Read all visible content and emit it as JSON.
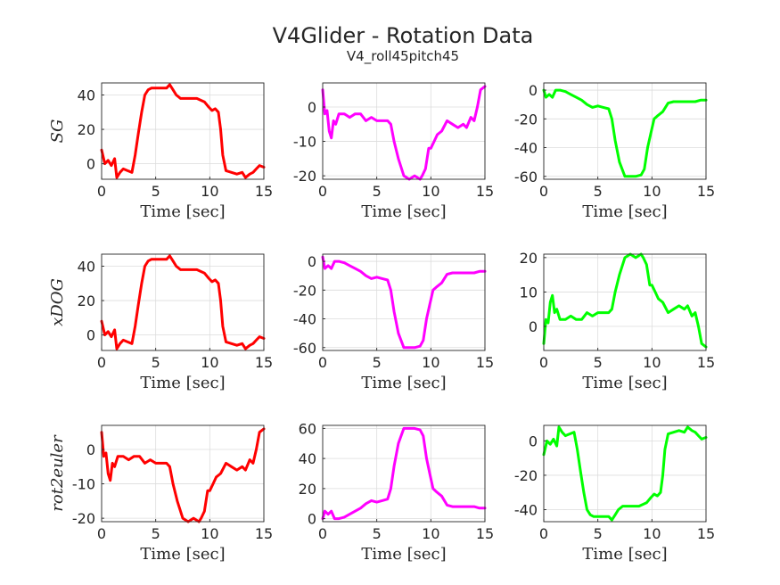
{
  "figure": {
    "title": "V4Glider - Rotation Data",
    "subtitle": "V4_roll45pitch45"
  },
  "chart_data": [
    {
      "type": "line",
      "row": 0,
      "col": 0,
      "ylabel": "SG",
      "xlabel": "Time [sec]",
      "xlim": [
        0,
        15
      ],
      "ylim": [
        -9,
        47
      ],
      "xticks": [
        0,
        5,
        10,
        15
      ],
      "yticks": [
        0,
        20,
        40
      ],
      "grid": true,
      "series": [
        {
          "color": "#ff0000",
          "x": [
            0,
            0.3,
            0.6,
            0.9,
            1.2,
            1.4,
            1.7,
            2.0,
            2.4,
            2.8,
            3.1,
            3.4,
            3.7,
            4.0,
            4.3,
            4.6,
            5.0,
            5.5,
            6.0,
            6.3,
            6.6,
            6.9,
            7.3,
            8.0,
            8.8,
            9.5,
            9.9,
            10.2,
            10.5,
            10.8,
            11.0,
            11.2,
            11.5,
            12.0,
            12.5,
            13.0,
            13.3,
            13.7,
            14.0,
            14.3,
            14.6,
            15.0
          ],
          "y": [
            8,
            0,
            2,
            -1,
            3,
            -8,
            -5,
            -3,
            -4,
            -5,
            5,
            18,
            30,
            40,
            43,
            44,
            44,
            44,
            44,
            46,
            43,
            40,
            38,
            38,
            38,
            36,
            33,
            31,
            32,
            30,
            20,
            5,
            -4,
            -5,
            -6,
            -5,
            -8,
            -6,
            -5,
            -3,
            -1,
            -2
          ]
        }
      ]
    },
    {
      "type": "line",
      "row": 0,
      "col": 1,
      "xlabel": "Time [sec]",
      "xlim": [
        0,
        15
      ],
      "ylim": [
        -21,
        7
      ],
      "xticks": [
        0,
        5,
        10,
        15
      ],
      "yticks": [
        -20,
        -10,
        0
      ],
      "grid": true,
      "series": [
        {
          "color": "#ff00ff",
          "x": [
            0,
            0.2,
            0.4,
            0.6,
            0.8,
            1.0,
            1.2,
            1.5,
            2.0,
            2.5,
            3.0,
            3.5,
            4.0,
            4.5,
            5.0,
            5.5,
            6.0,
            6.3,
            6.6,
            7.0,
            7.5,
            8.0,
            8.5,
            9.0,
            9.2,
            9.5,
            9.8,
            10.0,
            10.3,
            10.6,
            11.0,
            11.5,
            12.0,
            12.5,
            13.0,
            13.3,
            13.7,
            14.0,
            14.3,
            14.6,
            15.0
          ],
          "y": [
            5,
            -2,
            -1,
            -7,
            -9,
            -4,
            -5,
            -2,
            -2,
            -3,
            -2,
            -2,
            -4,
            -3,
            -4,
            -4,
            -4,
            -5,
            -10,
            -15,
            -20,
            -21,
            -20,
            -21,
            -20,
            -18,
            -12,
            -12,
            -10,
            -8,
            -7,
            -4,
            -5,
            -6,
            -5,
            -6,
            -3,
            -4,
            0,
            5,
            6
          ]
        }
      ]
    },
    {
      "type": "line",
      "row": 0,
      "col": 2,
      "xlabel": "Time [sec]",
      "xlim": [
        0,
        15
      ],
      "ylim": [
        -62,
        5
      ],
      "xticks": [
        0,
        5,
        10,
        15
      ],
      "yticks": [
        -60,
        -40,
        -20,
        0
      ],
      "grid": true,
      "series": [
        {
          "color": "#00ff00",
          "x": [
            0,
            0.2,
            0.5,
            0.8,
            1.1,
            1.5,
            2.0,
            2.5,
            3.0,
            3.5,
            4.0,
            4.5,
            5.0,
            5.5,
            6.0,
            6.3,
            6.6,
            7.0,
            7.5,
            8.0,
            8.5,
            9.0,
            9.3,
            9.6,
            9.9,
            10.2,
            10.5,
            11.0,
            11.5,
            12.0,
            12.5,
            13.0,
            13.5,
            14.0,
            14.5,
            15.0
          ],
          "y": [
            0,
            -5,
            -3,
            -5,
            0,
            0,
            -1,
            -3,
            -5,
            -7,
            -10,
            -12,
            -11,
            -12,
            -13,
            -20,
            -35,
            -50,
            -60,
            -60,
            -60,
            -59,
            -55,
            -40,
            -30,
            -20,
            -18,
            -15,
            -9,
            -8,
            -8,
            -8,
            -8,
            -8,
            -7,
            -7
          ]
        }
      ]
    },
    {
      "type": "line",
      "row": 1,
      "col": 0,
      "ylabel": "xDOG",
      "xlabel": "Time [sec]",
      "xlim": [
        0,
        15
      ],
      "ylim": [
        -9,
        47
      ],
      "xticks": [
        0,
        5,
        10,
        15
      ],
      "yticks": [
        0,
        20,
        40
      ],
      "grid": true,
      "series": [
        {
          "color": "#ff0000",
          "x": [
            0,
            0.3,
            0.6,
            0.9,
            1.2,
            1.4,
            1.7,
            2.0,
            2.4,
            2.8,
            3.1,
            3.4,
            3.7,
            4.0,
            4.3,
            4.6,
            5.0,
            5.5,
            6.0,
            6.3,
            6.6,
            6.9,
            7.3,
            8.0,
            8.8,
            9.5,
            9.9,
            10.2,
            10.5,
            10.8,
            11.0,
            11.2,
            11.5,
            12.0,
            12.5,
            13.0,
            13.3,
            13.7,
            14.0,
            14.3,
            14.6,
            15.0
          ],
          "y": [
            8,
            0,
            2,
            -1,
            3,
            -8,
            -5,
            -3,
            -4,
            -5,
            5,
            18,
            30,
            40,
            43,
            44,
            44,
            44,
            44,
            46,
            43,
            40,
            38,
            38,
            38,
            36,
            33,
            31,
            32,
            30,
            20,
            5,
            -4,
            -5,
            -6,
            -5,
            -8,
            -6,
            -5,
            -3,
            -1,
            -2
          ]
        }
      ]
    },
    {
      "type": "line",
      "row": 1,
      "col": 1,
      "xlabel": "Time [sec]",
      "xlim": [
        0,
        15
      ],
      "ylim": [
        -62,
        5
      ],
      "xticks": [
        0,
        5,
        10,
        15
      ],
      "yticks": [
        -60,
        -40,
        -20,
        0
      ],
      "grid": true,
      "series": [
        {
          "color": "#ff00ff",
          "x": [
            0,
            0.2,
            0.5,
            0.8,
            1.1,
            1.5,
            2.0,
            2.5,
            3.0,
            3.5,
            4.0,
            4.5,
            5.0,
            5.5,
            6.0,
            6.3,
            6.6,
            7.0,
            7.5,
            8.0,
            8.5,
            9.0,
            9.3,
            9.6,
            9.9,
            10.2,
            10.5,
            11.0,
            11.5,
            12.0,
            12.5,
            13.0,
            13.5,
            14.0,
            14.5,
            15.0
          ],
          "y": [
            3,
            -5,
            -3,
            -5,
            0,
            0,
            -1,
            -3,
            -5,
            -7,
            -10,
            -12,
            -11,
            -12,
            -13,
            -20,
            -35,
            -50,
            -60,
            -60,
            -60,
            -59,
            -55,
            -40,
            -30,
            -20,
            -18,
            -15,
            -9,
            -8,
            -8,
            -8,
            -8,
            -8,
            -7,
            -7
          ]
        }
      ]
    },
    {
      "type": "line",
      "row": 1,
      "col": 2,
      "xlabel": "Time [sec]",
      "xlim": [
        0,
        15
      ],
      "ylim": [
        -7,
        21
      ],
      "xticks": [
        0,
        5,
        10,
        15
      ],
      "yticks": [
        0,
        10,
        20
      ],
      "grid": true,
      "series": [
        {
          "color": "#00ff00",
          "x": [
            0,
            0.2,
            0.4,
            0.6,
            0.8,
            1.0,
            1.2,
            1.5,
            2.0,
            2.5,
            3.0,
            3.5,
            4.0,
            4.5,
            5.0,
            5.5,
            6.0,
            6.3,
            6.6,
            7.0,
            7.5,
            8.0,
            8.5,
            9.0,
            9.2,
            9.5,
            9.8,
            10.0,
            10.3,
            10.6,
            11.0,
            11.5,
            12.0,
            12.5,
            13.0,
            13.3,
            13.7,
            14.0,
            14.3,
            14.6,
            15.0
          ],
          "y": [
            -5,
            2,
            1,
            7,
            9,
            4,
            5,
            2,
            2,
            3,
            2,
            2,
            4,
            3,
            4,
            4,
            4,
            5,
            10,
            15,
            20,
            21,
            20,
            21,
            20,
            18,
            12,
            12,
            10,
            8,
            7,
            4,
            5,
            6,
            5,
            6,
            3,
            4,
            0,
            -5,
            -6
          ]
        }
      ]
    },
    {
      "type": "line",
      "row": 2,
      "col": 0,
      "ylabel": "rot2euler",
      "xlabel": "Time [sec]",
      "xlim": [
        0,
        15
      ],
      "ylim": [
        -21,
        7
      ],
      "xticks": [
        0,
        5,
        10,
        15
      ],
      "yticks": [
        -20,
        -10,
        0
      ],
      "grid": true,
      "series": [
        {
          "color": "#ff0000",
          "x": [
            0,
            0.2,
            0.4,
            0.6,
            0.8,
            1.0,
            1.2,
            1.5,
            2.0,
            2.5,
            3.0,
            3.5,
            4.0,
            4.5,
            5.0,
            5.5,
            6.0,
            6.3,
            6.6,
            7.0,
            7.5,
            8.0,
            8.5,
            9.0,
            9.2,
            9.5,
            9.8,
            10.0,
            10.3,
            10.6,
            11.0,
            11.5,
            12.0,
            12.5,
            13.0,
            13.3,
            13.7,
            14.0,
            14.3,
            14.6,
            15.0
          ],
          "y": [
            5,
            -2,
            -1,
            -7,
            -9,
            -4,
            -5,
            -2,
            -2,
            -3,
            -2,
            -2,
            -4,
            -3,
            -4,
            -4,
            -4,
            -5,
            -10,
            -15,
            -20,
            -21,
            -20,
            -21,
            -20,
            -18,
            -12,
            -12,
            -10,
            -8,
            -7,
            -4,
            -5,
            -6,
            -5,
            -6,
            -3,
            -4,
            0,
            5,
            6
          ]
        }
      ]
    },
    {
      "type": "line",
      "row": 2,
      "col": 1,
      "xlabel": "Time [sec]",
      "xlim": [
        0,
        15
      ],
      "ylim": [
        -2,
        62
      ],
      "xticks": [
        0,
        5,
        10,
        15
      ],
      "yticks": [
        0,
        20,
        40,
        60
      ],
      "grid": true,
      "series": [
        {
          "color": "#ff00ff",
          "x": [
            0,
            0.2,
            0.5,
            0.8,
            1.1,
            1.5,
            2.0,
            2.5,
            3.0,
            3.5,
            4.0,
            4.5,
            5.0,
            5.5,
            6.0,
            6.3,
            6.6,
            7.0,
            7.5,
            8.0,
            8.5,
            9.0,
            9.3,
            9.6,
            9.9,
            10.2,
            10.5,
            11.0,
            11.5,
            12.0,
            12.5,
            13.0,
            13.5,
            14.0,
            14.5,
            15.0
          ],
          "y": [
            0,
            5,
            3,
            5,
            0,
            0,
            1,
            3,
            5,
            7,
            10,
            12,
            11,
            12,
            13,
            20,
            35,
            50,
            60,
            60,
            60,
            59,
            55,
            40,
            30,
            20,
            18,
            15,
            9,
            8,
            8,
            8,
            8,
            8,
            7,
            7
          ]
        }
      ]
    },
    {
      "type": "line",
      "row": 2,
      "col": 2,
      "xlabel": "Time [sec]",
      "xlim": [
        0,
        15
      ],
      "ylim": [
        -47,
        9
      ],
      "xticks": [
        0,
        5,
        10,
        15
      ],
      "yticks": [
        -40,
        -20,
        0
      ],
      "grid": true,
      "series": [
        {
          "color": "#00ff00",
          "x": [
            0,
            0.3,
            0.6,
            0.9,
            1.2,
            1.4,
            1.7,
            2.0,
            2.4,
            2.8,
            3.1,
            3.4,
            3.7,
            4.0,
            4.3,
            4.6,
            5.0,
            5.5,
            6.0,
            6.3,
            6.6,
            6.9,
            7.3,
            8.0,
            8.8,
            9.5,
            9.9,
            10.2,
            10.5,
            10.8,
            11.0,
            11.2,
            11.5,
            12.0,
            12.5,
            13.0,
            13.3,
            13.7,
            14.0,
            14.3,
            14.6,
            15.0
          ],
          "y": [
            -8,
            0,
            -2,
            1,
            -3,
            8,
            5,
            3,
            4,
            5,
            -5,
            -18,
            -30,
            -40,
            -43,
            -44,
            -44,
            -44,
            -44,
            -46,
            -43,
            -40,
            -38,
            -38,
            -38,
            -36,
            -33,
            -31,
            -32,
            -30,
            -20,
            -5,
            4,
            5,
            6,
            5,
            8,
            6,
            5,
            3,
            1,
            2
          ]
        }
      ]
    }
  ]
}
